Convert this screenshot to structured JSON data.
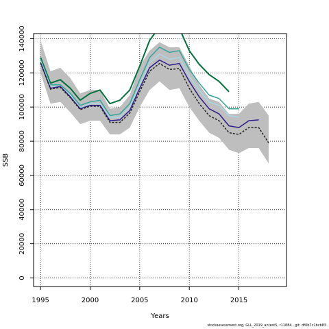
{
  "chart_data": {
    "type": "line",
    "title": "",
    "xlabel": "Years",
    "ylabel": "SSB",
    "xlim": [
      1994.3,
      2019.8
    ],
    "ylim": [
      -5000,
      143000
    ],
    "xticks": [
      1995,
      2000,
      2005,
      2010,
      2015
    ],
    "yticks": [
      0,
      20000,
      40000,
      60000,
      80000,
      100000,
      120000,
      140000
    ],
    "grid": true,
    "x": [
      1995,
      1996,
      1997,
      1998,
      1999,
      2000,
      2001,
      2002,
      2003,
      2004,
      2005,
      2006,
      2007,
      2008,
      2009,
      2010,
      2011,
      2012,
      2013,
      2014,
      2015,
      2016,
      2017,
      2018
    ],
    "band": {
      "color": "#bebebe",
      "upper": [
        139000,
        121000,
        123000,
        117000,
        108000,
        110000,
        110000,
        99000,
        100000,
        107000,
        124000,
        133000,
        138000,
        135000,
        135000,
        124000,
        113000,
        105000,
        103000,
        96000,
        96000,
        102000,
        103000,
        95000
      ],
      "lower": [
        120000,
        102000,
        103000,
        97000,
        90000,
        92000,
        92000,
        84000,
        84000,
        88000,
        100000,
        110000,
        115000,
        110000,
        111000,
        100000,
        92000,
        85000,
        82000,
        75000,
        73000,
        76000,
        76000,
        67000
      ]
    },
    "series": [
      {
        "color": "#00703c",
        "dash": false,
        "width": 2,
        "values": [
          129000,
          114000,
          116000,
          111000,
          104000,
          108000,
          110000,
          102000,
          104000,
          110000,
          124000,
          139000,
          147000,
          144000,
          146000,
          133000,
          125000,
          119000,
          115000,
          109000,
          null,
          null,
          null,
          null
        ]
      },
      {
        "color": "#34a49a",
        "dash": false,
        "width": 1.5,
        "values": [
          128000,
          113000,
          113000,
          108000,
          101000,
          103000,
          104000,
          95000,
          96000,
          102000,
          116000,
          129000,
          135000,
          132000,
          133000,
          122000,
          114000,
          107000,
          105000,
          99000,
          99000,
          null,
          null,
          null
        ]
      },
      {
        "color": "#a8d8e6",
        "dash": false,
        "width": 1.5,
        "values": [
          127000,
          112000,
          112000,
          107000,
          99500,
          102000,
          102000,
          94000,
          94000,
          100000,
          113000,
          126000,
          131000,
          128000,
          129000,
          118000,
          110000,
          103000,
          101000,
          95000,
          94000,
          null,
          null,
          null
        ]
      },
      {
        "color": "#2d1b8a",
        "dash": false,
        "width": 1.5,
        "values": [
          126000,
          111000,
          112000,
          106000,
          99000,
          101000,
          101000,
          92000,
          92500,
          98000,
          111000,
          123000,
          127500,
          124500,
          125500,
          115000,
          106000,
          99000,
          96000,
          89000,
          88000,
          92000,
          92500,
          null
        ]
      },
      {
        "color": "#222222",
        "dash": true,
        "width": 1.5,
        "values": [
          126000,
          110500,
          111500,
          105500,
          98500,
          100500,
          100500,
          91000,
          91000,
          96500,
          109000,
          121000,
          125500,
          122000,
          122500,
          111000,
          102000,
          95000,
          92000,
          85000,
          84000,
          88000,
          88000,
          79000
        ]
      }
    ]
  },
  "caption": "stockassessment.org, GLL_2019_antest5, r11884 , git: df0b7c1bcb83"
}
